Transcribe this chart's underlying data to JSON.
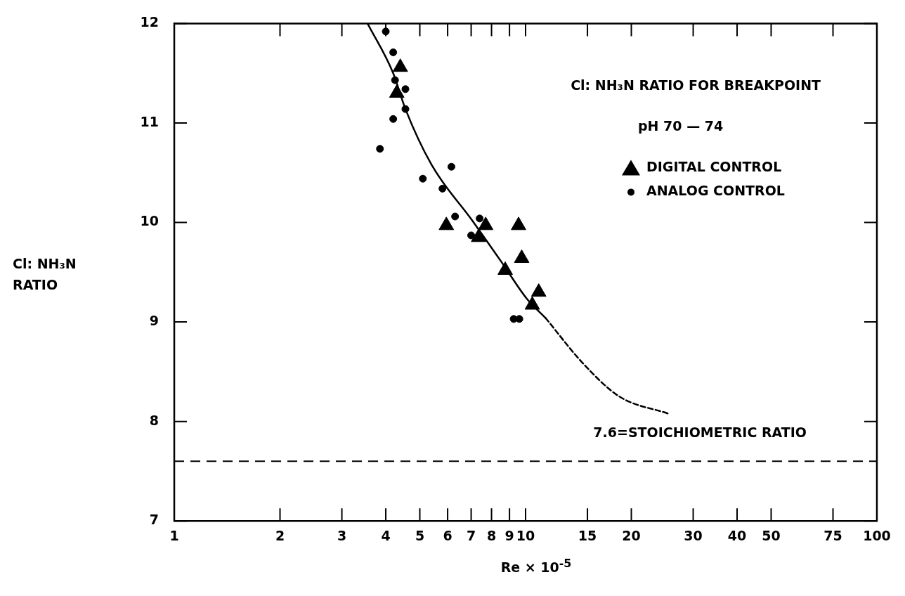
{
  "chart_data": {
    "type": "scatter",
    "xlabel": "Re × 10$^{-5}$",
    "ylabel": "Cl: NH₃N RATIO",
    "annotations": [
      "Cl: NH₃N RATIO FOR BREAKPOINT",
      "pH 70 — 74"
    ],
    "xlim": [
      1,
      100
    ],
    "xticks": [
      1,
      2,
      3,
      4,
      5,
      6,
      7,
      8,
      9,
      10,
      15,
      20,
      30,
      40,
      50,
      75,
      100
    ],
    "ylim": [
      7,
      12
    ],
    "yticks": [
      7,
      8,
      9,
      10,
      11,
      12
    ],
    "log": "x",
    "grid": false,
    "legend": "top right",
    "series": [
      {
        "name": "DIGITAL CONTROL",
        "marker": "triangle",
        "color": "#000000",
        "x": [
          4.4,
          4.3,
          5.95,
          7.7,
          7.35,
          9.55,
          9.75,
          8.75,
          10.9,
          10.45
        ],
        "values": [
          11.56,
          11.3,
          9.97,
          9.97,
          9.85,
          9.97,
          9.64,
          9.52,
          9.3,
          9.17
        ]
      },
      {
        "name": "ANALOG CONTROL",
        "marker": "circle",
        "color": "#000000",
        "x": [
          4.0,
          4.2,
          4.25,
          4.55,
          4.55,
          4.2,
          3.85,
          5.1,
          6.15,
          5.8,
          6.3,
          7.4,
          7.0,
          9.25,
          9.6
        ],
        "values": [
          11.92,
          11.71,
          11.43,
          11.34,
          11.14,
          11.04,
          10.74,
          10.44,
          10.56,
          10.34,
          10.06,
          10.04,
          9.87,
          9.03,
          9.03
        ]
      },
      {
        "type": "line",
        "marker": "none",
        "line_style": "solid",
        "color": "#000000",
        "x": [
          3.55,
          4.2,
          4.55,
          5.4,
          7.05,
          8.55,
          10.1,
          11.4
        ],
        "values": [
          12,
          11.5,
          11.14,
          10.58,
          10.02,
          9.6,
          9.23,
          9.04
        ]
      },
      {
        "type": "line",
        "marker": "none",
        "line_style": "dashed",
        "color": "#000000",
        "x": [
          11.4,
          14.6,
          18.5,
          25.4
        ],
        "values": [
          9.04,
          8.58,
          8.25,
          8.08
        ]
      }
    ],
    "ref_lines": [
      {
        "axis": "y",
        "value": 7.6,
        "label": "7.6=STOICHIOMETRIC RATIO",
        "line_style": "dashed",
        "color": "#000000"
      }
    ]
  }
}
